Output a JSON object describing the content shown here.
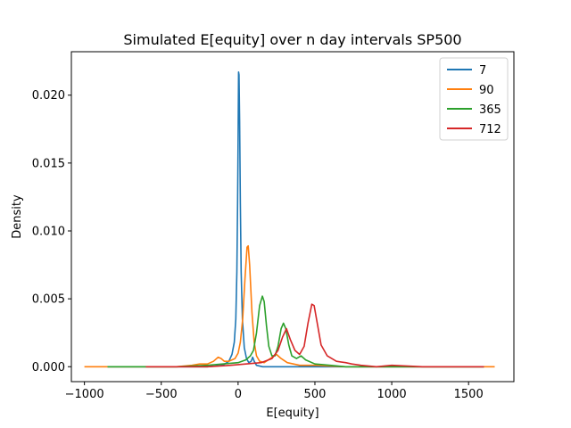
{
  "chart_data": {
    "type": "line",
    "title": "Simulated E[equity] over n day intervals SP500",
    "xlabel": "E[equity]",
    "ylabel": "Density",
    "xlim": [
      -1085,
      1795
    ],
    "ylim": [
      -0.0011,
      0.0232
    ],
    "xticks": [
      -1000,
      -500,
      0,
      500,
      1000,
      1500
    ],
    "xtick_labels": [
      "−1000",
      "−500",
      "0",
      "500",
      "1000",
      "1500"
    ],
    "yticks": [
      0.0,
      0.005,
      0.01,
      0.015,
      0.02
    ],
    "ytick_labels": [
      "0.000",
      "0.005",
      "0.010",
      "0.015",
      "0.020"
    ],
    "grid": false,
    "legend_position": "top-right",
    "series": [
      {
        "name": "7",
        "color": "#1f77b4",
        "points": [
          [
            -850,
            0
          ],
          [
            -200,
            0
          ],
          [
            -100,
            0.0001
          ],
          [
            -60,
            0.0004
          ],
          [
            -40,
            0.0009
          ],
          [
            -25,
            0.0018
          ],
          [
            -15,
            0.0035
          ],
          [
            -8,
            0.007
          ],
          [
            -3,
            0.012
          ],
          [
            0,
            0.017
          ],
          [
            3,
            0.0217
          ],
          [
            6,
            0.0215
          ],
          [
            10,
            0.018
          ],
          [
            15,
            0.012
          ],
          [
            20,
            0.007
          ],
          [
            28,
            0.0035
          ],
          [
            40,
            0.0014
          ],
          [
            55,
            0.0006
          ],
          [
            70,
            0.0003
          ],
          [
            85,
            0.0004
          ],
          [
            95,
            0.0007
          ],
          [
            105,
            0.0004
          ],
          [
            120,
            0.0001
          ],
          [
            160,
            0
          ],
          [
            400,
            0
          ],
          [
            1000,
            0
          ],
          [
            1600,
            0
          ]
        ]
      },
      {
        "name": "90",
        "color": "#ff7f0e",
        "points": [
          [
            -1000,
            0
          ],
          [
            -400,
            0
          ],
          [
            -300,
            0.0001
          ],
          [
            -250,
            0.0002
          ],
          [
            -200,
            0.0002
          ],
          [
            -160,
            0.0004
          ],
          [
            -130,
            0.0007
          ],
          [
            -110,
            0.0006
          ],
          [
            -90,
            0.0004
          ],
          [
            -60,
            0.0004
          ],
          [
            -40,
            0.0005
          ],
          [
            -20,
            0.0006
          ],
          [
            0,
            0.001
          ],
          [
            15,
            0.0018
          ],
          [
            30,
            0.0035
          ],
          [
            45,
            0.0065
          ],
          [
            58,
            0.0088
          ],
          [
            66,
            0.0089
          ],
          [
            75,
            0.0075
          ],
          [
            90,
            0.004
          ],
          [
            105,
            0.0018
          ],
          [
            120,
            0.0008
          ],
          [
            140,
            0.0004
          ],
          [
            170,
            0.0003
          ],
          [
            210,
            0.0006
          ],
          [
            250,
            0.0009
          ],
          [
            280,
            0.0006
          ],
          [
            320,
            0.0003
          ],
          [
            400,
            0.0001
          ],
          [
            500,
            0.0001
          ],
          [
            700,
            0
          ],
          [
            1000,
            0
          ],
          [
            1670,
            0
          ]
        ]
      },
      {
        "name": "365",
        "color": "#2ca02c",
        "points": [
          [
            -850,
            0
          ],
          [
            -400,
            0
          ],
          [
            -200,
            0.0001
          ],
          [
            -100,
            0.0002
          ],
          [
            0,
            0.0003
          ],
          [
            50,
            0.0005
          ],
          [
            80,
            0.0008
          ],
          [
            100,
            0.0012
          ],
          [
            120,
            0.0025
          ],
          [
            140,
            0.0045
          ],
          [
            158,
            0.0052
          ],
          [
            170,
            0.0048
          ],
          [
            185,
            0.003
          ],
          [
            200,
            0.0015
          ],
          [
            220,
            0.0008
          ],
          [
            240,
            0.0008
          ],
          [
            260,
            0.0015
          ],
          [
            280,
            0.0028
          ],
          [
            295,
            0.0032
          ],
          [
            310,
            0.0028
          ],
          [
            330,
            0.0016
          ],
          [
            350,
            0.0008
          ],
          [
            380,
            0.0006
          ],
          [
            410,
            0.0008
          ],
          [
            440,
            0.0005
          ],
          [
            500,
            0.0002
          ],
          [
            600,
            0.0001
          ],
          [
            700,
            0
          ],
          [
            1000,
            0
          ],
          [
            1600,
            0
          ]
        ]
      },
      {
        "name": "712",
        "color": "#d62728",
        "points": [
          [
            -600,
            0
          ],
          [
            -200,
            0
          ],
          [
            -50,
            0.0001
          ],
          [
            50,
            0.0002
          ],
          [
            150,
            0.0003
          ],
          [
            220,
            0.0006
          ],
          [
            260,
            0.0012
          ],
          [
            290,
            0.0022
          ],
          [
            315,
            0.0028
          ],
          [
            340,
            0.002
          ],
          [
            370,
            0.0012
          ],
          [
            400,
            0.0009
          ],
          [
            430,
            0.0015
          ],
          [
            455,
            0.0032
          ],
          [
            480,
            0.0046
          ],
          [
            495,
            0.0045
          ],
          [
            515,
            0.0032
          ],
          [
            540,
            0.0016
          ],
          [
            580,
            0.0008
          ],
          [
            640,
            0.0004
          ],
          [
            700,
            0.0003
          ],
          [
            740,
            0.0002
          ],
          [
            800,
            0.0001
          ],
          [
            900,
            0
          ],
          [
            1000,
            0.0001
          ],
          [
            1200,
            0
          ],
          [
            1600,
            0
          ]
        ]
      }
    ]
  }
}
